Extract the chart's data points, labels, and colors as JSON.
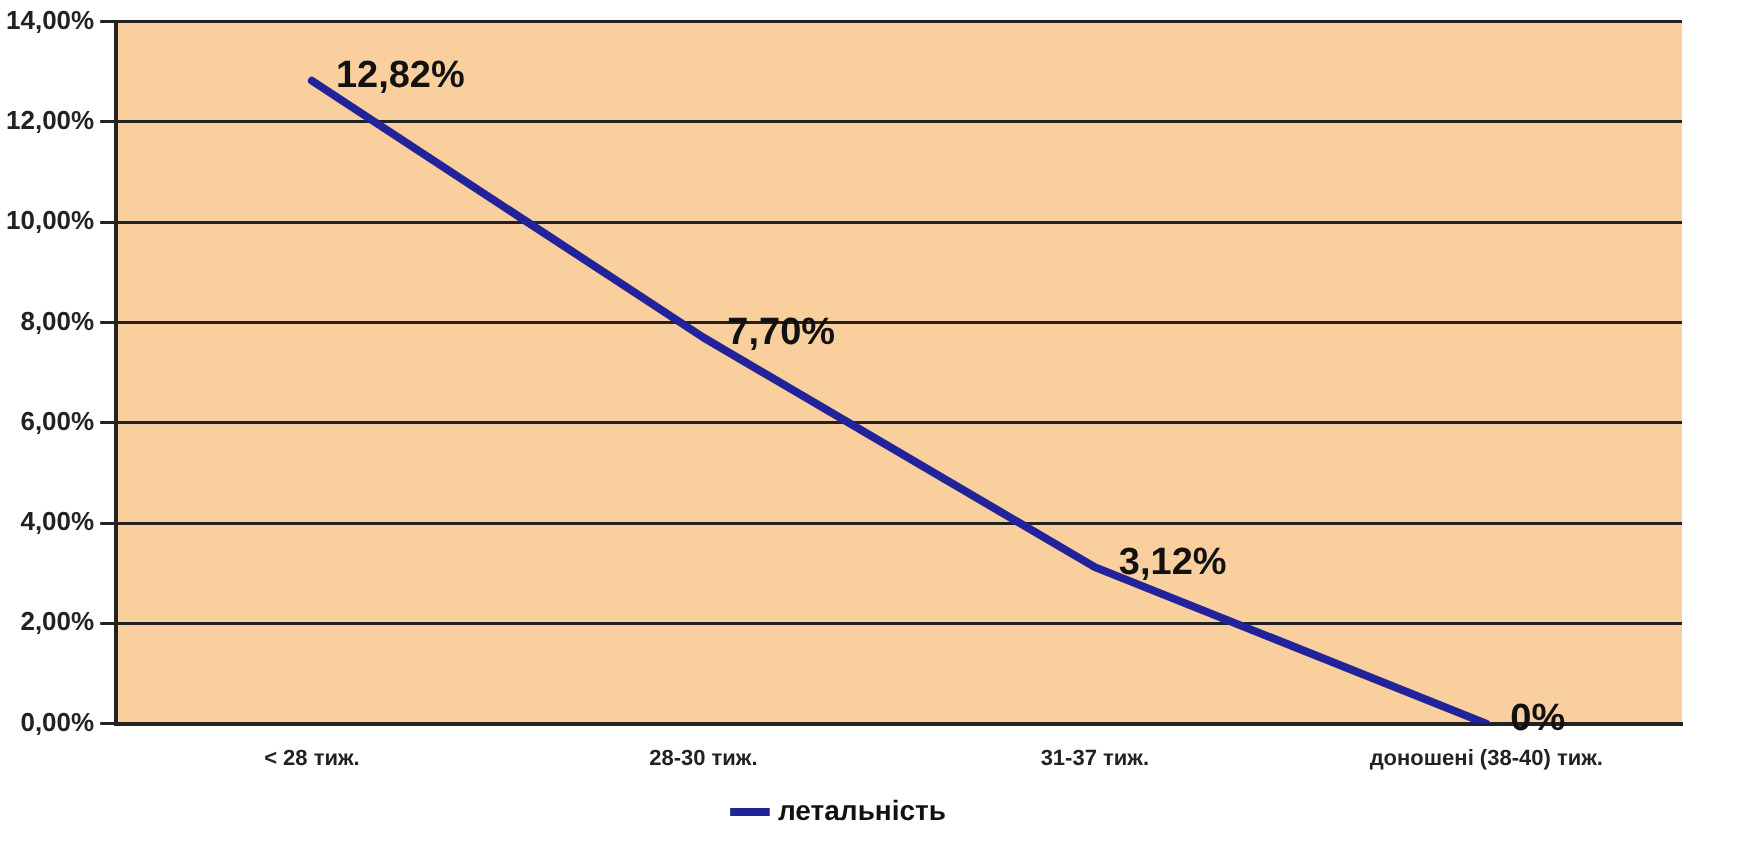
{
  "chart_data": {
    "type": "line",
    "categories": [
      "< 28 тиж.",
      "28-30 тиж.",
      "31-37 тиж.",
      "доношені (38-40) тиж."
    ],
    "series": [
      {
        "name": "летальність",
        "color": "#22229a",
        "values": [
          12.82,
          7.7,
          3.12,
          0
        ],
        "value_labels": [
          "12,82%",
          "7,70%",
          "3,12%",
          "0%"
        ]
      }
    ],
    "ylim": [
      0,
      14
    ],
    "yticks": [
      {
        "value": 0,
        "label": "0,00%"
      },
      {
        "value": 2,
        "label": "2,00%"
      },
      {
        "value": 4,
        "label": "4,00%"
      },
      {
        "value": 6,
        "label": "6,00%"
      },
      {
        "value": 8,
        "label": "8,00%"
      },
      {
        "value": 10,
        "label": "10,00%"
      },
      {
        "value": 12,
        "label": "12,00%"
      },
      {
        "value": 14,
        "label": "14,00%"
      }
    ],
    "grid": "y",
    "legend": "bottom",
    "marker": "none",
    "line_style": "solid"
  }
}
